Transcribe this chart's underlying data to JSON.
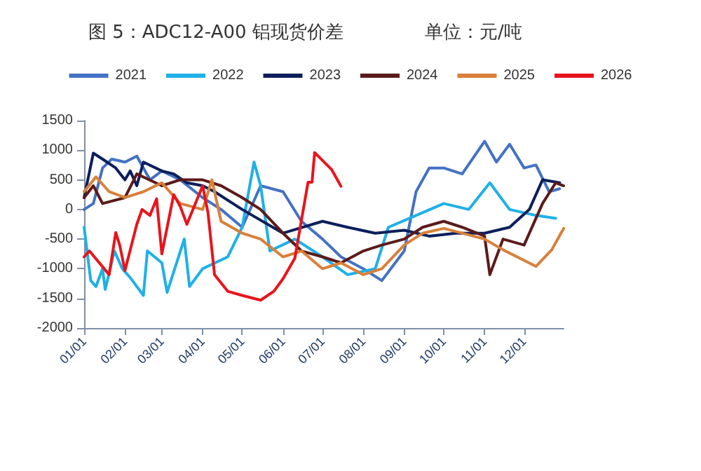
{
  "chart_data": {
    "type": "line",
    "title": "图 5：ADC12-A00 铝现货价差",
    "subtitle": "单位：元/吨",
    "legend": "top",
    "grid": false,
    "marker": "none",
    "line_style": "solid",
    "xlim": [
      "--01-01",
      "--12-31"
    ],
    "xticks": [
      {
        "value": "--01-01",
        "label": "01/01"
      },
      {
        "value": "--02-01",
        "label": "02/01"
      },
      {
        "value": "--03-01",
        "label": "03/01"
      },
      {
        "value": "--04-01",
        "label": "04/01"
      },
      {
        "value": "--05-01",
        "label": "05/01"
      },
      {
        "value": "--06-01",
        "label": "06/01"
      },
      {
        "value": "--07-01",
        "label": "07/01"
      },
      {
        "value": "--08-01",
        "label": "08/01"
      },
      {
        "value": "--09-01",
        "label": "09/01"
      },
      {
        "value": "--10-01",
        "label": "10/01"
      },
      {
        "value": "--11-01",
        "label": "11/01"
      },
      {
        "value": "--12-01",
        "label": "12/01"
      }
    ],
    "ylim": [
      -2000,
      1500
    ],
    "yticks": [
      -2000,
      -1500,
      -1000,
      -500,
      0,
      500,
      1000,
      1500
    ],
    "series": [
      {
        "name": "2021",
        "color": "#4472c4",
        "x": [
          "--01-01",
          "--01-08",
          "--01-15",
          "--01-22",
          "--02-01",
          "--02-10",
          "--02-20",
          "--03-01",
          "--03-15",
          "--04-01",
          "--04-15",
          "--05-01",
          "--05-15",
          "--06-01",
          "--06-15",
          "--07-01",
          "--07-15",
          "--08-01",
          "--08-15",
          "--09-01",
          "--09-10",
          "--09-20",
          "--10-01",
          "--10-15",
          "--11-01",
          "--11-10",
          "--11-20",
          "--12-01",
          "--12-10",
          "--12-20",
          "--12-28"
        ],
        "values": [
          0,
          100,
          700,
          850,
          800,
          900,
          500,
          650,
          500,
          200,
          0,
          -300,
          400,
          300,
          -200,
          -500,
          -800,
          -1000,
          -1200,
          -700,
          300,
          700,
          700,
          600,
          1150,
          800,
          1100,
          700,
          750,
          300,
          350
        ]
      },
      {
        "name": "2022",
        "color": "#1fb0e8",
        "x": [
          "--01-01",
          "--01-06",
          "--01-10",
          "--01-15",
          "--01-17",
          "--01-24",
          "--01-30",
          "--02-05",
          "--02-15",
          "--02-18",
          "--03-01",
          "--03-05",
          "--03-18",
          "--03-22",
          "--04-01",
          "--04-20",
          "--05-01",
          "--05-10",
          "--05-15",
          "--05-22",
          "--06-10",
          "--07-01",
          "--07-20",
          "--08-10",
          "--08-20",
          "--09-10",
          "--10-01",
          "--10-20",
          "--11-05",
          "--11-20",
          "--12-10",
          "--12-25"
        ],
        "values": [
          -300,
          -1200,
          -1300,
          -1000,
          -1350,
          -700,
          -1000,
          -1150,
          -1450,
          -700,
          -900,
          -1400,
          -500,
          -1300,
          -1000,
          -800,
          -300,
          800,
          400,
          -700,
          -500,
          -800,
          -1100,
          -1000,
          -300,
          -100,
          100,
          0,
          450,
          0,
          -100,
          -150
        ]
      },
      {
        "name": "2023",
        "color": "#0c1f5c",
        "x": [
          "--01-01",
          "--01-08",
          "--01-15",
          "--01-25",
          "--02-01",
          "--02-05",
          "--02-10",
          "--02-15",
          "--03-01",
          "--03-10",
          "--03-20",
          "--04-01",
          "--04-10",
          "--05-01",
          "--06-01",
          "--07-01",
          "--07-20",
          "--08-10",
          "--09-01",
          "--09-20",
          "--10-10",
          "--11-01",
          "--11-20",
          "--12-05",
          "--12-15",
          "--12-28"
        ],
        "values": [
          200,
          950,
          850,
          700,
          500,
          650,
          400,
          800,
          650,
          600,
          450,
          400,
          300,
          0,
          -400,
          -200,
          -300,
          -400,
          -350,
          -450,
          -400,
          -400,
          -300,
          0,
          500,
          450
        ]
      },
      {
        "name": "2024",
        "color": "#5c1a1a",
        "x": [
          "--01-01",
          "--01-08",
          "--01-15",
          "--02-01",
          "--02-10",
          "--03-01",
          "--03-15",
          "--04-01",
          "--04-15",
          "--05-01",
          "--05-15",
          "--06-01",
          "--06-15",
          "--07-01",
          "--07-15",
          "--08-01",
          "--08-15",
          "--09-01",
          "--09-15",
          "--10-01",
          "--10-15",
          "--11-01",
          "--11-05",
          "--11-15",
          "--12-01",
          "--12-15",
          "--12-25",
          "--12-31"
        ],
        "values": [
          200,
          400,
          100,
          200,
          600,
          400,
          500,
          500,
          400,
          200,
          0,
          -400,
          -700,
          -800,
          -900,
          -700,
          -600,
          -500,
          -300,
          -200,
          -300,
          -450,
          -1100,
          -500,
          -600,
          100,
          450,
          400
        ]
      },
      {
        "name": "2025",
        "color": "#d9803a",
        "x": [
          "--01-01",
          "--01-10",
          "--01-20",
          "--02-01",
          "--02-15",
          "--03-01",
          "--03-15",
          "--04-01",
          "--04-08",
          "--04-15",
          "--05-01",
          "--05-15",
          "--06-01",
          "--06-15",
          "--07-01",
          "--07-15",
          "--08-01",
          "--08-15",
          "--09-01",
          "--09-15",
          "--10-01",
          "--10-15",
          "--11-01",
          "--11-15",
          "--12-10",
          "--12-22",
          "--12-31"
        ],
        "values": [
          300,
          550,
          300,
          200,
          300,
          450,
          100,
          0,
          500,
          -200,
          -400,
          -500,
          -800,
          -700,
          -1000,
          -900,
          -1100,
          -1000,
          -600,
          -400,
          -320,
          -400,
          -500,
          -680,
          -960,
          -680,
          -320
        ]
      },
      {
        "name": "2026",
        "color": "#e8141c",
        "x": [
          "--01-01",
          "--01-05",
          "--01-20",
          "--01-25",
          "--01-28",
          "--02-01",
          "--02-10",
          "--02-14",
          "--02-20",
          "--02-25",
          "--03-01",
          "--03-10",
          "--03-15",
          "--03-20",
          "--04-01",
          "--04-05",
          "--04-10",
          "--04-20",
          "--05-01",
          "--05-15",
          "--05-25",
          "--06-01",
          "--06-10",
          "--06-20",
          "--06-23",
          "--06-25",
          "--07-08",
          "--07-15"
        ],
        "values": [
          -800,
          -700,
          -1100,
          -390,
          -600,
          -1030,
          -250,
          0,
          -100,
          180,
          -750,
          250,
          50,
          -250,
          400,
          -50,
          -1100,
          -1380,
          -1450,
          -1530,
          -1380,
          -1170,
          -820,
          460,
          460,
          960,
          670,
          390
        ]
      }
    ]
  }
}
